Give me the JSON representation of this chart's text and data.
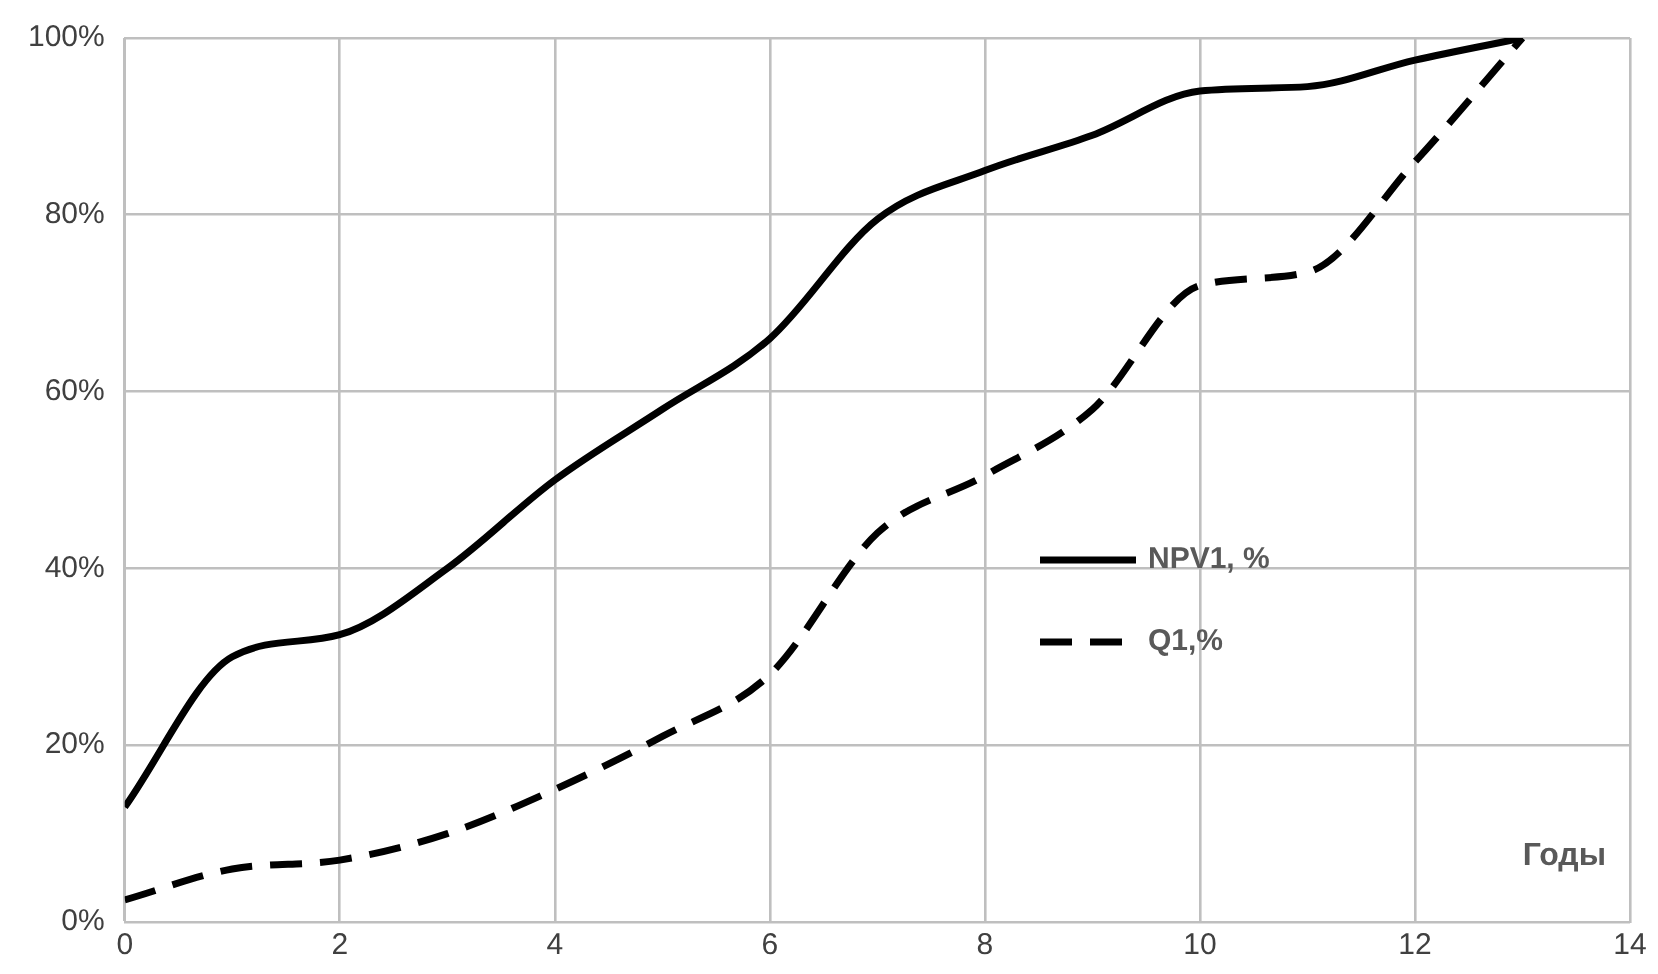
{
  "chart_data": {
    "type": "line",
    "xlabel": "Годы",
    "x": [
      0,
      1,
      2,
      3,
      4,
      5,
      6,
      7,
      8,
      9,
      10,
      11,
      12,
      13
    ],
    "series": [
      {
        "name": "NPV1, %",
        "color": "#000000",
        "line_style": "solid",
        "values": [
          13,
          30,
          32.5,
          40,
          50,
          58,
          66,
          79.5,
          85,
          89,
          94,
          94.5,
          97.5,
          100
        ]
      },
      {
        "name": "Q1,%",
        "color": "#000000",
        "line_style": "dashed",
        "values": [
          2.5,
          6,
          7,
          10,
          15,
          21,
          28,
          44,
          50.5,
          58,
          72,
          73.5,
          86,
          100
        ]
      }
    ],
    "xlim": [
      0,
      14
    ],
    "xticks": [
      0,
      2,
      4,
      6,
      8,
      10,
      12,
      14
    ],
    "ylim": [
      0,
      100
    ],
    "yticks": [
      {
        "value": 0,
        "label": "0%"
      },
      {
        "value": 20,
        "label": "20%"
      },
      {
        "value": 40,
        "label": "40%"
      },
      {
        "value": 60,
        "label": "60%"
      },
      {
        "value": 80,
        "label": "80%"
      },
      {
        "value": 100,
        "label": "100%"
      }
    ],
    "grid": true,
    "legend": "right",
    "marker": "none"
  }
}
